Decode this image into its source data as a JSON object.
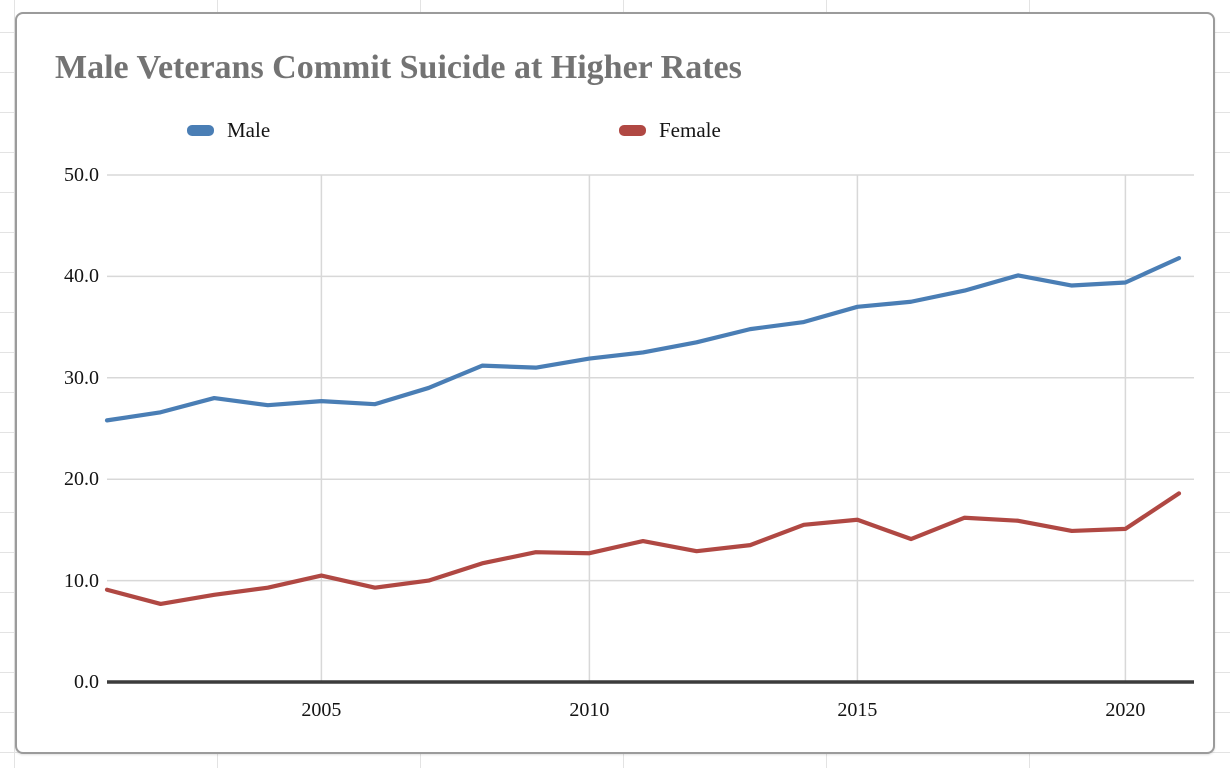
{
  "sheet": {
    "grid_color": "#e3e3e3",
    "background": "#ffffff"
  },
  "chart_card": {
    "background": "#ffffff",
    "border_color": "#9b9b9b"
  },
  "chart_data": {
    "type": "line",
    "title": "Male Veterans Commit Suicide at Higher Rates",
    "title_color": "#737373",
    "x": [
      2001,
      2002,
      2003,
      2004,
      2005,
      2006,
      2007,
      2008,
      2009,
      2010,
      2011,
      2012,
      2013,
      2014,
      2015,
      2016,
      2017,
      2018,
      2019,
      2020,
      2021
    ],
    "series": [
      {
        "name": "Male",
        "color": "#4a7eb5",
        "values": [
          25.8,
          26.6,
          28.0,
          27.3,
          27.7,
          27.4,
          29.0,
          31.2,
          31.0,
          31.9,
          32.5,
          33.5,
          34.8,
          35.5,
          37.0,
          37.5,
          38.6,
          40.1,
          39.1,
          39.4,
          41.8
        ]
      },
      {
        "name": "Female",
        "color": "#b04843",
        "values": [
          9.1,
          7.7,
          8.6,
          9.3,
          10.5,
          9.3,
          10.0,
          11.7,
          12.8,
          12.7,
          13.9,
          12.9,
          13.5,
          15.5,
          16.0,
          14.1,
          16.2,
          15.9,
          14.9,
          15.1,
          18.6
        ]
      },
      {
        "name": null
      }
    ],
    "xlabel": "",
    "ylabel": "",
    "ylim": [
      0,
      50
    ],
    "yticks": [
      50,
      40,
      30,
      20,
      10,
      0
    ],
    "ytick_labels": [
      "50.0",
      "40.0",
      "30.0",
      "20.0",
      "10.0",
      "0.0"
    ],
    "xticks": [
      2005,
      2010,
      2015,
      2020
    ],
    "xtick_labels": [
      "2005",
      "2010",
      "2015",
      "2020"
    ],
    "grid": true,
    "legend_position": "top",
    "gridline_color": "#d8d8d8",
    "axis_color": "#3c3c3c",
    "tick_label_color": "#141414"
  }
}
